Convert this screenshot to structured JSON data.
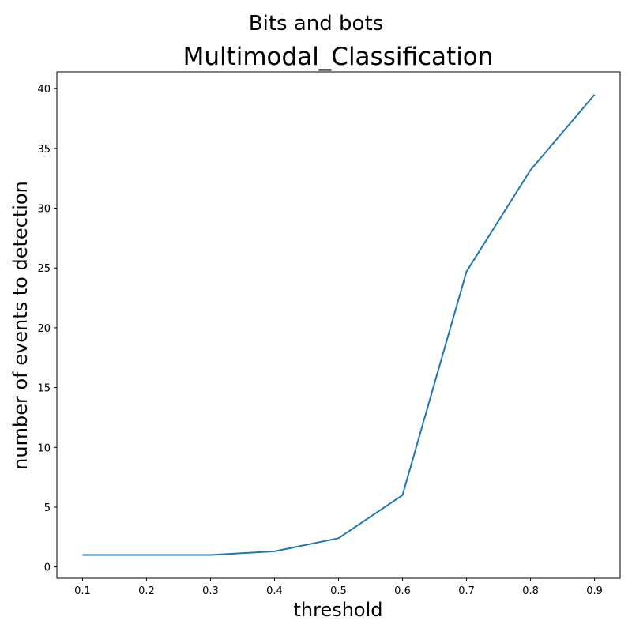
{
  "suptitle": "Bits and bots",
  "chart_data": {
    "type": "line",
    "title": "Multimodal_Classification",
    "xlabel": "threshold",
    "ylabel": "number of events to detection",
    "xlim": [
      0.06,
      0.94
    ],
    "ylim": [
      -0.95,
      41.4
    ],
    "x_ticks": [
      "0.1",
      "0.2",
      "0.3",
      "0.4",
      "0.5",
      "0.6",
      "0.7",
      "0.8",
      "0.9"
    ],
    "y_ticks": [
      "0",
      "5",
      "10",
      "15",
      "20",
      "25",
      "30",
      "35",
      "40"
    ],
    "grid": false,
    "series": [
      {
        "color": "#1f77b4",
        "x": [
          0.1,
          0.2,
          0.3,
          0.4,
          0.5,
          0.6,
          0.7,
          0.8,
          0.9
        ],
        "y": [
          1.0,
          1.0,
          1.0,
          1.3,
          2.4,
          6.0,
          24.7,
          33.2,
          39.5
        ]
      }
    ]
  }
}
